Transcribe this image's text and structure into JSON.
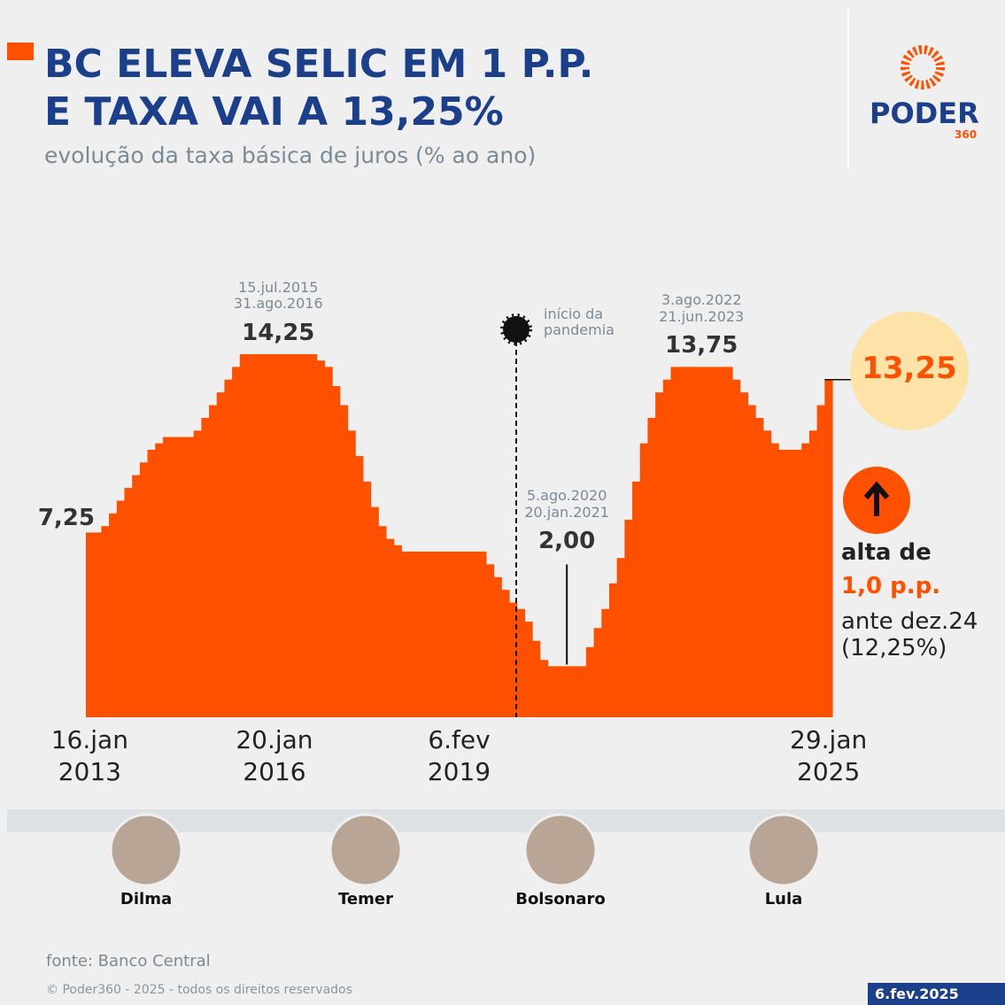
{
  "chart_data": {
    "type": "step",
    "title": "BC ELEVA SELIC EM 1 P.P.\nE TAXA VAI A 13,25%",
    "subtitle": "evolução da taxa básica de juros (% ao ano)",
    "categories": [
      "16.jan\n2013",
      null,
      null,
      null,
      null,
      null,
      null,
      null,
      null,
      null,
      null,
      null,
      null,
      null,
      null,
      null,
      null,
      null,
      null,
      null,
      null,
      null,
      null,
      null,
      "20.jan\n2016",
      null,
      null,
      null,
      null,
      null,
      null,
      null,
      null,
      null,
      null,
      null,
      null,
      null,
      null,
      null,
      null,
      null,
      null,
      null,
      null,
      null,
      null,
      null,
      "6.fev\n2019",
      null,
      null,
      null,
      null,
      null,
      null,
      null,
      null,
      null,
      null,
      null,
      null,
      null,
      null,
      null,
      null,
      null,
      null,
      null,
      null,
      null,
      null,
      null,
      null,
      null,
      null,
      null,
      null,
      null,
      null,
      null,
      null,
      null,
      null,
      null,
      null,
      null,
      null,
      null,
      null,
      null,
      null,
      null,
      null,
      null,
      null,
      null,
      "29.jan\n2025"
    ],
    "values": [
      7.25,
      7.25,
      7.5,
      8,
      8.5,
      9,
      9.5,
      10,
      10.5,
      10.75,
      11,
      11,
      11,
      11,
      11.25,
      11.75,
      12.25,
      12.75,
      13.25,
      13.75,
      14.25,
      14.25,
      14.25,
      14.25,
      14.25,
      14.25,
      14.25,
      14.25,
      14.25,
      14.25,
      14,
      13.75,
      13,
      12.25,
      11.25,
      10.25,
      9.25,
      8.25,
      7.5,
      7,
      6.75,
      6.5,
      6.5,
      6.5,
      6.5,
      6.5,
      6.5,
      6.5,
      6.5,
      6.5,
      6.5,
      6.5,
      6,
      5.5,
      5,
      4.5,
      4.25,
      3.75,
      3,
      2.25,
      2,
      2,
      2,
      2,
      2,
      2.75,
      3.5,
      4.25,
      5.25,
      6.25,
      7.75,
      9.25,
      10.75,
      11.75,
      12.75,
      13.25,
      13.75,
      13.75,
      13.75,
      13.75,
      13.75,
      13.75,
      13.75,
      13.75,
      13.25,
      12.75,
      12.25,
      11.75,
      11.25,
      10.75,
      10.5,
      10.5,
      10.5,
      10.75,
      11.25,
      12.25,
      13.25
    ],
    "value_labels": [
      "7,25",
      null,
      null,
      null,
      null,
      null,
      null,
      null,
      null,
      null,
      null,
      null,
      null,
      null,
      null,
      null,
      null,
      null,
      null,
      null,
      "14,25",
      null,
      null,
      null,
      null,
      null,
      null,
      null,
      null,
      null,
      null,
      null,
      null,
      null,
      null,
      null,
      null,
      null,
      null,
      null,
      null,
      null,
      null,
      null,
      null,
      null,
      null,
      null,
      null,
      null,
      null,
      null,
      null,
      null,
      null,
      null,
      null,
      null,
      null,
      null,
      "2,00",
      null,
      null,
      null,
      null,
      null,
      null,
      null,
      null,
      null,
      null,
      null,
      null,
      null,
      null,
      null,
      "13,75",
      null,
      null,
      null,
      null,
      null,
      null,
      null,
      null,
      null,
      null,
      null,
      null,
      null,
      null,
      null,
      null,
      null,
      null,
      null,
      "13,25"
    ],
    "value_notes": [
      null,
      null,
      null,
      null,
      null,
      null,
      null,
      null,
      null,
      null,
      null,
      null,
      null,
      null,
      null,
      null,
      null,
      null,
      null,
      null,
      "15.jul.2015\n31.ago.2016",
      null,
      null,
      null,
      null,
      null,
      null,
      null,
      null,
      null,
      null,
      null,
      null,
      null,
      null,
      null,
      null,
      null,
      null,
      null,
      null,
      null,
      null,
      null,
      null,
      null,
      null,
      null,
      null,
      null,
      null,
      null,
      null,
      null,
      null,
      null,
      null,
      null,
      null,
      null,
      "5.ago.2020\n20.jan.2021",
      null,
      null,
      null,
      null,
      null,
      null,
      null,
      null,
      null,
      null,
      null,
      null,
      null,
      null,
      null,
      "3.ago.2022\n21.jun.2023",
      null,
      null,
      null,
      null,
      null,
      null,
      null,
      null,
      null,
      null,
      null,
      null,
      null,
      null,
      null,
      null,
      null,
      null,
      null,
      null
    ],
    "color": "#ff5000",
    "ylim": [
      0,
      14.25
    ],
    "pandemic_note": "início da\npandemia",
    "callout": {
      "line1": "alta de",
      "line2": "1,0 p.p.",
      "line3": "ante dez.24\n(12,25%)"
    },
    "presidents": [
      "Dilma",
      "Temer",
      "Bolsonaro",
      "Lula"
    ],
    "source": "fonte: Banco Central",
    "copyright": "© Poder360 - 2025 - todos os direitos reservados",
    "date": "6.fev.2025",
    "logo": {
      "name": "PODER",
      "number": "360"
    }
  }
}
